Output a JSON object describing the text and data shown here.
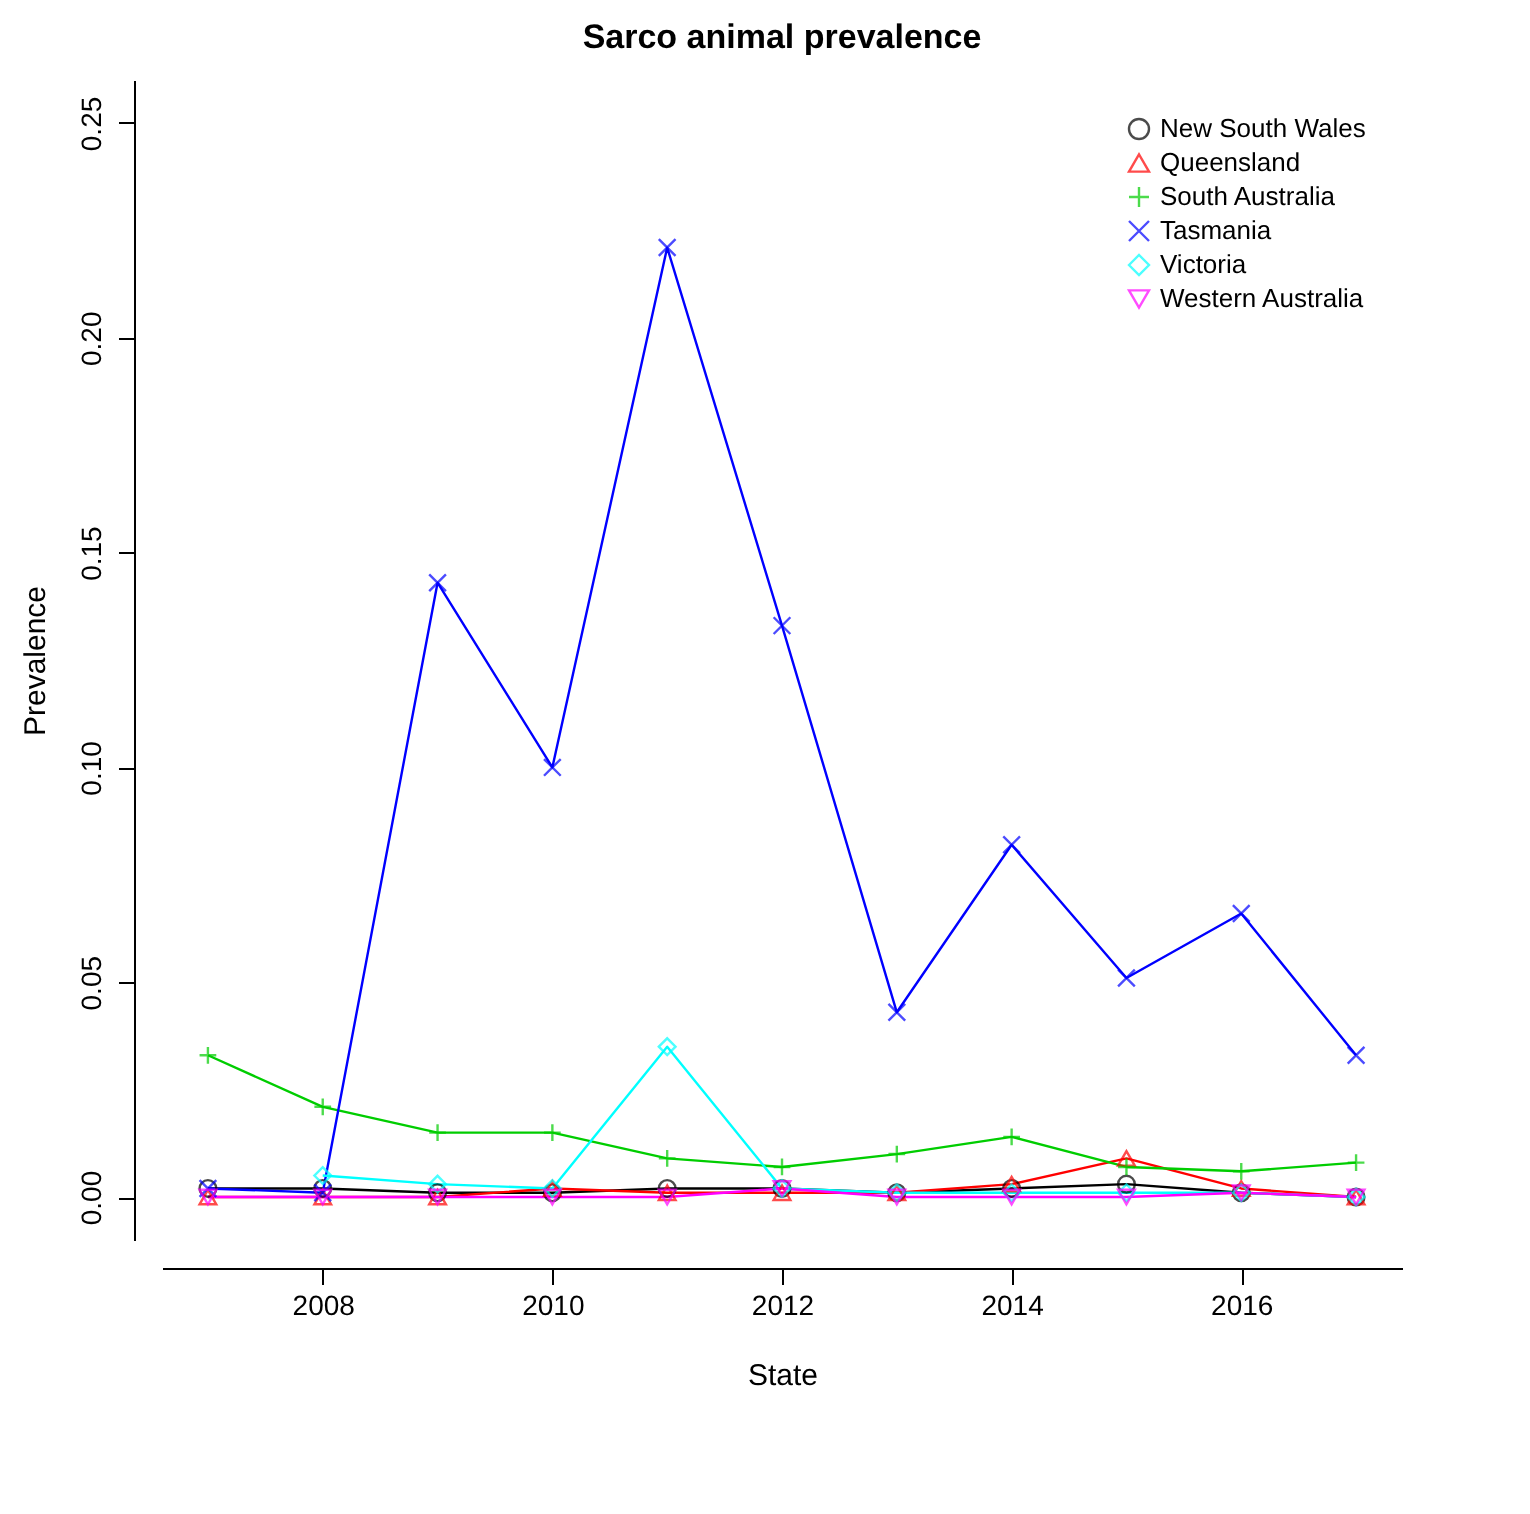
{
  "chart_data": {
    "type": "line",
    "title": "Sarco animal prevalence",
    "xlabel": "State",
    "ylabel": "Prevalence",
    "x": [
      2007,
      2008,
      2009,
      2010,
      2011,
      2012,
      2013,
      2014,
      2015,
      2016,
      2017
    ],
    "series": [
      {
        "name": "New South Wales",
        "color": "#000000",
        "marker": "circle",
        "values": [
          0.002,
          0.002,
          0.001,
          0.001,
          0.002,
          0.002,
          0.001,
          0.002,
          0.003,
          0.001,
          0.0
        ]
      },
      {
        "name": "Queensland",
        "color": "#ff0000",
        "marker": "triangle",
        "values": [
          0.0,
          0.0,
          0.0,
          0.002,
          0.001,
          0.001,
          0.001,
          0.003,
          0.009,
          0.002,
          0.0
        ]
      },
      {
        "name": "South Australia",
        "color": "#00cd00",
        "marker": "cross",
        "values": [
          0.033,
          0.021,
          0.015,
          0.015,
          0.009,
          0.007,
          0.01,
          0.014,
          0.007,
          0.006,
          0.008
        ]
      },
      {
        "name": "Tasmania",
        "color": "#0000ff",
        "marker": "x",
        "values": [
          0.002,
          0.001,
          0.143,
          0.1,
          0.221,
          0.133,
          0.043,
          0.082,
          0.051,
          0.066,
          0.033
        ]
      },
      {
        "name": "Victoria",
        "color": "#00ffff",
        "marker": "diamond",
        "values": [
          null,
          0.005,
          0.003,
          0.002,
          0.035,
          0.002,
          0.001,
          0.001,
          0.001,
          0.001,
          0.0
        ]
      },
      {
        "name": "Western Australia",
        "color": "#ff00ff",
        "marker": "triangle-down",
        "values": [
          0.0,
          0.0,
          0.0,
          0.0,
          0.0,
          0.002,
          0.0,
          0.0,
          0.0,
          0.001,
          0.0
        ]
      }
    ],
    "xlim": [
      2006.6,
      2017.4
    ],
    "xticks": [
      2008,
      2010,
      2012,
      2014,
      2016
    ],
    "ylim": [
      -0.01,
      0.26
    ],
    "yticks": [
      {
        "value": 0,
        "label": "0.00"
      },
      0.05,
      {
        "value": 0.1,
        "label": "0.10"
      },
      0.15,
      {
        "value": 0.2,
        "label": "0.20"
      },
      0.25
    ],
    "grid": false,
    "legend": "top right",
    "line_style": "solid"
  }
}
